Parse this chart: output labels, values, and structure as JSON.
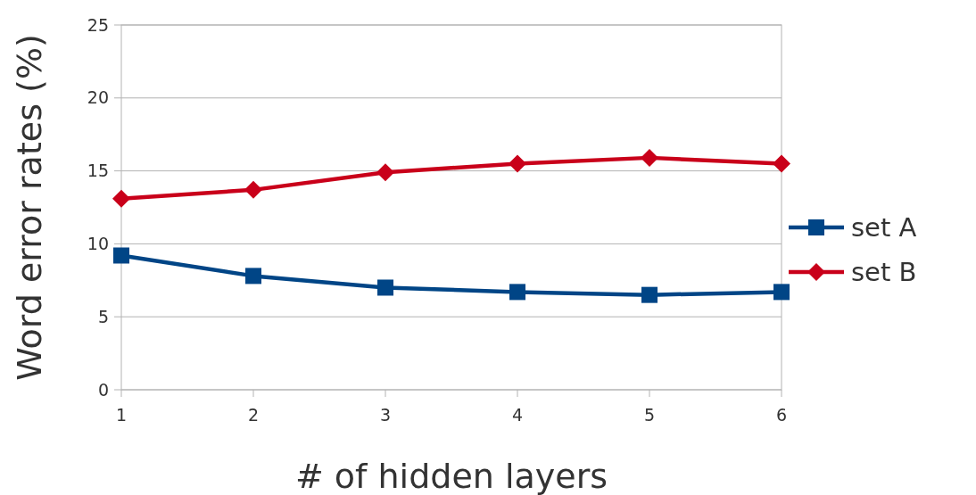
{
  "chart_data": {
    "type": "line",
    "xlabel": "# of hidden layers",
    "ylabel": "Word error rates (%)",
    "x": [
      1,
      2,
      3,
      4,
      5,
      6
    ],
    "xlim": [
      1,
      6
    ],
    "xticks": [
      1,
      2,
      3,
      4,
      5,
      6
    ],
    "ylim": [
      0,
      25
    ],
    "yticks": [
      0,
      5,
      10,
      15,
      20,
      25
    ],
    "grid": "y",
    "legend": "right",
    "series": [
      {
        "name": "set A",
        "color": "#004586",
        "marker": "square",
        "values": [
          9.2,
          7.8,
          7.0,
          6.7,
          6.5,
          6.7
        ]
      },
      {
        "name": "set B",
        "color": "#c9001a",
        "marker": "diamond",
        "values": [
          13.1,
          13.7,
          14.9,
          15.5,
          15.9,
          15.5
        ]
      }
    ]
  }
}
